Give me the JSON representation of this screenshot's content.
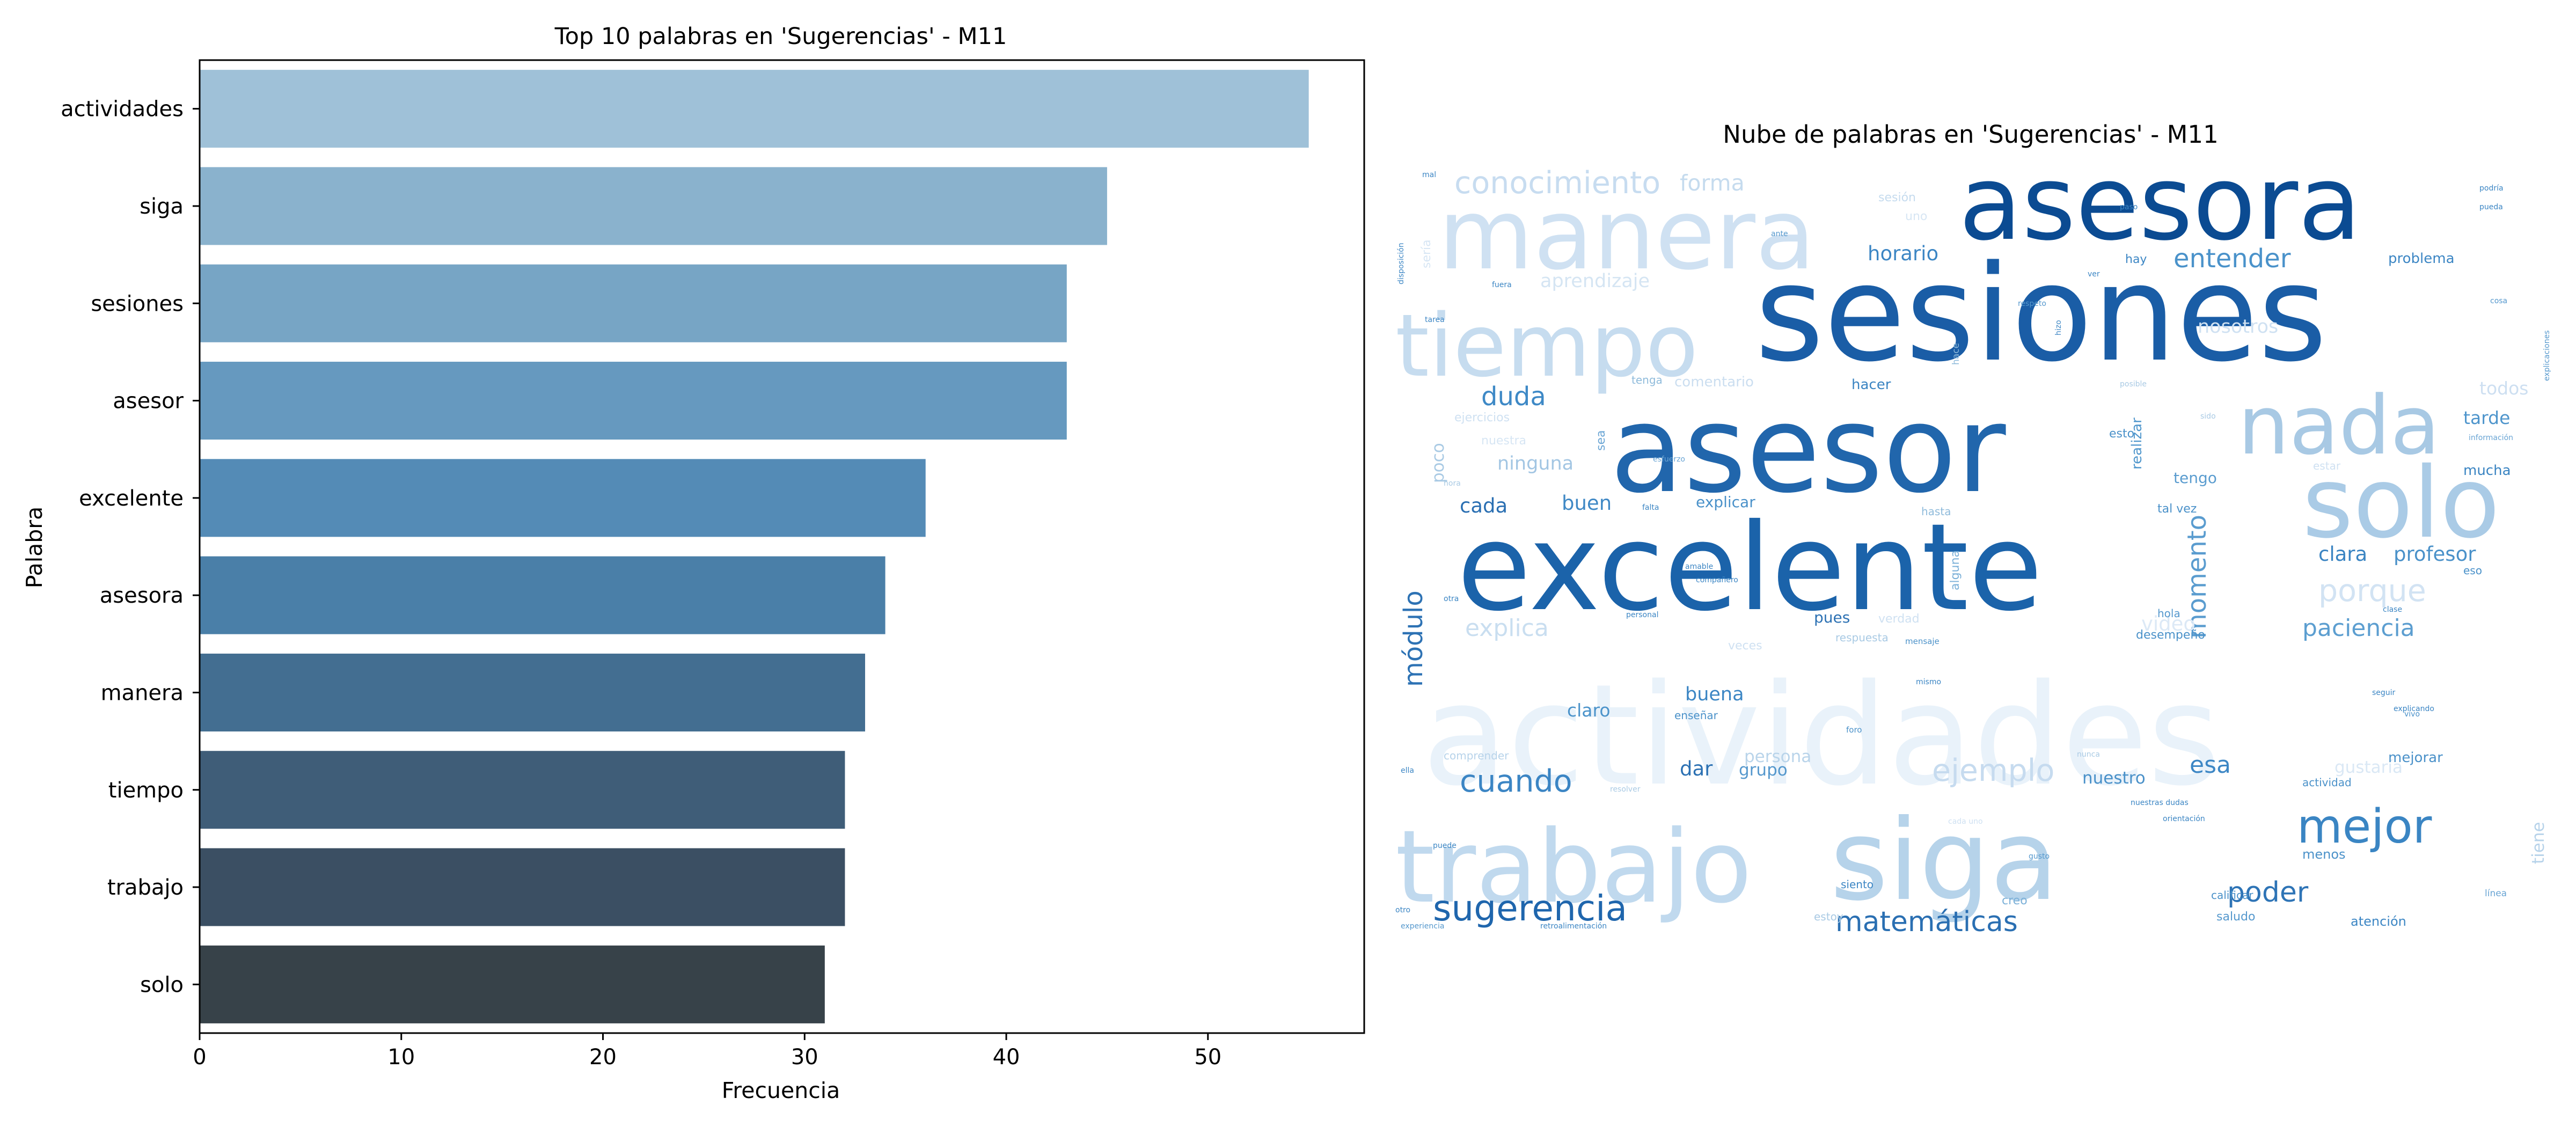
{
  "chart_data": [
    {
      "type": "bar",
      "orientation": "horizontal",
      "title": "Top 10 palabras en 'Sugerencias' - M11",
      "xlabel": "Frecuencia",
      "ylabel": "Palabra",
      "categories": [
        "actividades",
        "siga",
        "sesiones",
        "asesor",
        "excelente",
        "asesora",
        "manera",
        "tiempo",
        "trabajo",
        "solo"
      ],
      "values": [
        55,
        45,
        43,
        43,
        36,
        34,
        33,
        32,
        32,
        31
      ],
      "xlim": [
        0,
        57.75
      ],
      "xticks": [
        0,
        10,
        20,
        30,
        40,
        50
      ],
      "colors": [
        "#9fc1d8",
        "#8ab2cd",
        "#77a5c5",
        "#6699bf",
        "#548bb6",
        "#4a7fa8",
        "#436e91",
        "#3f5d78",
        "#3b4f63",
        "#374249"
      ],
      "grid": false
    },
    {
      "type": "wordcloud",
      "title": "Nube de palabras en 'Sugerencias' - M11",
      "words": [
        {
          "text": "actividades",
          "size": 1.0,
          "color": "#e9f2fa"
        },
        {
          "text": "sesiones",
          "size": 0.95,
          "color": "#1a5da6"
        },
        {
          "text": "asesor",
          "size": 0.86,
          "color": "#2166ac"
        },
        {
          "text": "excelente",
          "size": 0.86,
          "color": "#1b63aa"
        },
        {
          "text": "siga",
          "size": 0.8,
          "color": "#b6d3ea"
        },
        {
          "text": "trabajo",
          "size": 0.72,
          "color": "#c0d9ee"
        },
        {
          "text": "asesora",
          "size": 0.74,
          "color": "#0b4b92"
        },
        {
          "text": "manera",
          "size": 0.7,
          "color": "#cfe1f2"
        },
        {
          "text": "solo",
          "size": 0.7,
          "color": "#aacbe6"
        },
        {
          "text": "tiempo",
          "size": 0.62,
          "color": "#c6dcef"
        },
        {
          "text": "nada",
          "size": 0.58,
          "color": "#a8c9e4"
        },
        {
          "text": "mejor",
          "size": 0.4,
          "color": "#3a85c3"
        },
        {
          "text": "sugerencia",
          "size": 0.3,
          "color": "#1f66ad"
        },
        {
          "text": "matemáticas",
          "size": 0.24,
          "color": "#2a6fb2"
        },
        {
          "text": "conocimiento",
          "size": 0.26,
          "color": "#c7dcf0"
        },
        {
          "text": "cuando",
          "size": 0.26,
          "color": "#3b85c4"
        },
        {
          "text": "ejemplo",
          "size": 0.26,
          "color": "#c6dbef"
        },
        {
          "text": "porque",
          "size": 0.26,
          "color": "#d2e3f3"
        },
        {
          "text": "poder",
          "size": 0.24,
          "color": "#2e74b6"
        },
        {
          "text": "duda",
          "size": 0.22,
          "color": "#3e89c6"
        },
        {
          "text": "entender",
          "size": 0.22,
          "color": "#4a92ca"
        },
        {
          "text": "momento",
          "size": 0.22,
          "color": "#5a9ccf"
        },
        {
          "text": "módulo",
          "size": 0.22,
          "color": "#2d72b4"
        },
        {
          "text": "paciencia",
          "size": 0.2,
          "color": "#5c9ed0"
        },
        {
          "text": "explica",
          "size": 0.2,
          "color": "#c9def0"
        },
        {
          "text": "esa",
          "size": 0.2,
          "color": "#3d87c5"
        },
        {
          "text": "forma",
          "size": 0.19,
          "color": "#c5dbee"
        },
        {
          "text": "horario",
          "size": 0.17,
          "color": "#3c86c4"
        },
        {
          "text": "aprendizaje",
          "size": 0.16,
          "color": "#d5e5f3"
        },
        {
          "text": "nosotros",
          "size": 0.16,
          "color": "#cfe1f2"
        },
        {
          "text": "clara",
          "size": 0.17,
          "color": "#3a84c2"
        },
        {
          "text": "profesor",
          "size": 0.17,
          "color": "#4a91c9"
        },
        {
          "text": "cada",
          "size": 0.17,
          "color": "#2a6fb2"
        },
        {
          "text": "buen",
          "size": 0.17,
          "color": "#3f88c5"
        },
        {
          "text": "ninguna",
          "size": 0.16,
          "color": "#a3c6e3"
        },
        {
          "text": "video",
          "size": 0.17,
          "color": "#dce9f6"
        },
        {
          "text": "tarde",
          "size": 0.15,
          "color": "#4e95cc"
        },
        {
          "text": "todos",
          "size": 0.15,
          "color": "#cddff1"
        },
        {
          "text": "buena",
          "size": 0.16,
          "color": "#3c86c4"
        },
        {
          "text": "claro",
          "size": 0.15,
          "color": "#4b93ca"
        },
        {
          "text": "dar",
          "size": 0.17,
          "color": "#2c71b3"
        },
        {
          "text": "grupo",
          "size": 0.14,
          "color": "#5598cd"
        },
        {
          "text": "persona",
          "size": 0.14,
          "color": "#b9d4ea"
        },
        {
          "text": "nuestro",
          "size": 0.14,
          "color": "#4a91c9"
        },
        {
          "text": "gustaría",
          "size": 0.14,
          "color": "#dae8f5"
        },
        {
          "text": "mejorar",
          "size": 0.12,
          "color": "#4a91c9"
        },
        {
          "text": "problema",
          "size": 0.12,
          "color": "#3c86c4"
        },
        {
          "text": "explicar",
          "size": 0.13,
          "color": "#4a91c9"
        },
        {
          "text": "hacer",
          "size": 0.12,
          "color": "#3a84c2"
        },
        {
          "text": "realizar",
          "size": 0.12,
          "color": "#4f96cc"
        },
        {
          "text": "pues",
          "size": 0.13,
          "color": "#2c71b3"
        },
        {
          "text": "tengo",
          "size": 0.13,
          "color": "#5a9ccf"
        },
        {
          "text": "mucha",
          "size": 0.12,
          "color": "#3a84c2"
        },
        {
          "text": "comentario",
          "size": 0.12,
          "color": "#cbdef0"
        },
        {
          "text": "menos",
          "size": 0.11,
          "color": "#4a91c9"
        },
        {
          "text": "atención",
          "size": 0.11,
          "color": "#3c86c4"
        },
        {
          "text": "saludo",
          "size": 0.1,
          "color": "#5598cd"
        },
        {
          "text": "desempeño",
          "size": 0.1,
          "color": "#4a91c9"
        },
        {
          "text": "hay",
          "size": 0.1,
          "color": "#3c86c4"
        },
        {
          "text": "tal vez",
          "size": 0.1,
          "color": "#4a91c9"
        },
        {
          "text": "esto",
          "size": 0.1,
          "color": "#4a91c9"
        },
        {
          "text": "hasta",
          "size": 0.09,
          "color": "#8fbbdb"
        },
        {
          "text": "sea",
          "size": 0.1,
          "color": "#6aa5d4"
        },
        {
          "text": "poco",
          "size": 0.14,
          "color": "#a9cae4"
        },
        {
          "text": "alguna",
          "size": 0.1,
          "color": "#7bb0d8"
        },
        {
          "text": "tiene",
          "size": 0.14,
          "color": "#b7d3ea"
        },
        {
          "text": "verdad",
          "size": 0.1,
          "color": "#cfe1f2"
        },
        {
          "text": "veces",
          "size": 0.1,
          "color": "#cfe1f2"
        },
        {
          "text": "respuesta",
          "size": 0.09,
          "color": "#a9cae4"
        },
        {
          "text": "hola",
          "size": 0.09,
          "color": "#5598cd"
        },
        {
          "text": "eso",
          "size": 0.09,
          "color": "#4a91c9"
        },
        {
          "text": "creo",
          "size": 0.1,
          "color": "#7bb0d8"
        },
        {
          "text": "siento",
          "size": 0.09,
          "color": "#3c86c4"
        },
        {
          "text": "estoy",
          "size": 0.09,
          "color": "#a9cae4"
        },
        {
          "text": "calificar",
          "size": 0.09,
          "color": "#4a91c9"
        },
        {
          "text": "línea",
          "size": 0.08,
          "color": "#6aa5d4"
        },
        {
          "text": "actividad",
          "size": 0.09,
          "color": "#4a91c9"
        },
        {
          "text": "comprender",
          "size": 0.09,
          "color": "#b7d3ea"
        },
        {
          "text": "ejercicios",
          "size": 0.1,
          "color": "#cfe1f2"
        },
        {
          "text": "nuestra",
          "size": 0.1,
          "color": "#d7e6f4"
        },
        {
          "text": "enseñar",
          "size": 0.09,
          "color": "#4a91c9"
        },
        {
          "text": "sesión",
          "size": 0.1,
          "color": "#c5dbee"
        },
        {
          "text": "uno",
          "size": 0.1,
          "color": "#d7e6f4"
        },
        {
          "text": "sería",
          "size": 0.1,
          "color": "#d7e6f4"
        },
        {
          "text": "tenga",
          "size": 0.09,
          "color": "#8fbbdb"
        },
        {
          "text": "estar",
          "size": 0.09,
          "color": "#cfe1f2"
        },
        {
          "text": "vivo",
          "size": 0.06,
          "color": "#4a91c9"
        },
        {
          "text": "foro",
          "size": 0.07,
          "color": "#4a91c9"
        },
        {
          "text": "mensaje",
          "size": 0.07,
          "color": "#4a91c9"
        },
        {
          "text": "mismo",
          "size": 0.06,
          "color": "#3c86c4"
        },
        {
          "text": "personal",
          "size": 0.06,
          "color": "#3c86c4"
        },
        {
          "text": "hace",
          "size": 0.08,
          "color": "#8fbbdb"
        },
        {
          "text": "esfuerzo",
          "size": 0.06,
          "color": "#6aa5d4"
        },
        {
          "text": "falta",
          "size": 0.06,
          "color": "#3c86c4"
        },
        {
          "text": "ella",
          "size": 0.06,
          "color": "#3c86c4"
        },
        {
          "text": "otro",
          "size": 0.06,
          "color": "#3c86c4"
        },
        {
          "text": "otra",
          "size": 0.06,
          "color": "#3c86c4"
        },
        {
          "text": "puede",
          "size": 0.05,
          "color": "#3c86c4"
        },
        {
          "text": "experiencia",
          "size": 0.05,
          "color": "#5598cd"
        },
        {
          "text": "retroalimentación",
          "size": 0.05,
          "color": "#3c86c4"
        },
        {
          "text": "disposición",
          "size": 0.06,
          "color": "#3c86c4"
        },
        {
          "text": "explicaciones",
          "size": 0.06,
          "color": "#5598cd"
        },
        {
          "text": "información",
          "size": 0.05,
          "color": "#6aa5d4"
        },
        {
          "text": "amable",
          "size": 0.05,
          "color": "#3c86c4"
        },
        {
          "text": "compañero",
          "size": 0.05,
          "color": "#3c86c4"
        },
        {
          "text": "clase",
          "size": 0.05,
          "color": "#3c86c4"
        },
        {
          "text": "seguir",
          "size": 0.05,
          "color": "#3c86c4"
        },
        {
          "text": "explicando",
          "size": 0.05,
          "color": "#3c86c4"
        },
        {
          "text": "nunca",
          "size": 0.06,
          "color": "#a9cae4"
        },
        {
          "text": "gusto",
          "size": 0.05,
          "color": "#5598cd"
        },
        {
          "text": "resolver",
          "size": 0.06,
          "color": "#a9cae4"
        },
        {
          "text": "orientación",
          "size": 0.04,
          "color": "#3c86c4"
        },
        {
          "text": "respeto",
          "size": 0.05,
          "color": "#5598cd"
        },
        {
          "text": "posible",
          "size": 0.05,
          "color": "#a9cae4"
        },
        {
          "text": "hizo",
          "size": 0.06,
          "color": "#3c86c4"
        },
        {
          "text": "sido",
          "size": 0.05,
          "color": "#a9cae4"
        },
        {
          "text": "hora",
          "size": 0.05,
          "color": "#a9cae4"
        },
        {
          "text": "tarea",
          "size": 0.05,
          "color": "#3c86c4"
        },
        {
          "text": "cosa",
          "size": 0.05,
          "color": "#5598cd"
        },
        {
          "text": "pueda",
          "size": 0.05,
          "color": "#3c86c4"
        },
        {
          "text": "podría",
          "size": 0.04,
          "color": "#3c86c4"
        },
        {
          "text": "paso",
          "size": 0.05,
          "color": "#3c86c4"
        },
        {
          "text": "ante",
          "size": 0.05,
          "color": "#5598cd"
        },
        {
          "text": "nuestras dudas",
          "size": 0.05,
          "color": "#3c86c4"
        },
        {
          "text": "cada uno",
          "size": 0.05,
          "color": "#cfe1f2"
        },
        {
          "text": "ver",
          "size": 0.05,
          "color": "#3c86c4"
        },
        {
          "text": "fuera",
          "size": 0.04,
          "color": "#3c86c4"
        },
        {
          "text": "mal",
          "size": 0.04,
          "color": "#3c86c4"
        }
      ]
    }
  ]
}
